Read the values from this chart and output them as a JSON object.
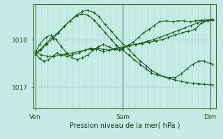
{
  "title": "",
  "xlabel": "Pression niveau de la mer( hPa )",
  "background_color": "#c5ece4",
  "grid_color_h": "#b0d8d0",
  "grid_color_v": "#b8d8d2",
  "line_color": "#1a5c1a",
  "xtick_labels": [
    "Ven",
    "Sam",
    "Dim"
  ],
  "xtick_positions": [
    0.0,
    1.0,
    2.0
  ],
  "ytick_labels": [
    "1017",
    "1018"
  ],
  "ytick_positions": [
    1017.0,
    1018.0
  ],
  "ylim": [
    1016.55,
    1018.75
  ],
  "xlim": [
    -0.02,
    2.07
  ],
  "series": [
    {
      "x": [
        0.0,
        0.05,
        0.1,
        0.15,
        0.2,
        0.25,
        0.3,
        0.36,
        0.42,
        0.5,
        0.57,
        0.63,
        0.7,
        0.78,
        0.85,
        0.92,
        1.0,
        1.08,
        1.15,
        1.22,
        1.3,
        1.38,
        1.45,
        1.52,
        1.6,
        1.68,
        1.75,
        1.83,
        1.9,
        1.97,
        2.03
      ],
      "y": [
        1017.72,
        1017.6,
        1017.55,
        1017.58,
        1017.65,
        1017.72,
        1017.68,
        1017.65,
        1017.68,
        1017.72,
        1017.78,
        1017.82,
        1017.8,
        1017.75,
        1017.78,
        1017.82,
        1017.85,
        1017.88,
        1017.9,
        1017.92,
        1017.95,
        1017.98,
        1018.0,
        1018.05,
        1018.1,
        1018.15,
        1018.18,
        1018.22,
        1018.35,
        1018.4,
        1018.42
      ]
    },
    {
      "x": [
        0.0,
        0.07,
        0.14,
        0.21,
        0.28,
        0.35,
        0.42,
        0.5,
        0.57,
        0.64,
        0.71,
        0.78,
        0.85,
        0.92,
        1.0,
        1.07,
        1.14,
        1.21,
        1.28,
        1.35,
        1.42,
        1.5,
        1.57,
        1.64,
        1.71,
        1.78,
        1.85,
        1.92,
        2.0,
        2.03
      ],
      "y": [
        1017.75,
        1017.68,
        1017.65,
        1017.65,
        1017.68,
        1017.7,
        1017.72,
        1017.75,
        1017.78,
        1017.8,
        1017.82,
        1017.8,
        1017.78,
        1017.8,
        1017.83,
        1017.87,
        1017.9,
        1017.93,
        1017.97,
        1018.0,
        1018.05,
        1018.1,
        1018.15,
        1018.2,
        1018.25,
        1018.3,
        1018.35,
        1018.4,
        1018.42,
        1018.43
      ]
    },
    {
      "x": [
        0.0,
        0.05,
        0.12,
        0.18,
        0.24,
        0.3,
        0.36,
        0.42,
        0.48,
        0.54,
        0.6,
        0.66,
        0.72,
        0.78,
        0.84,
        0.9,
        0.96,
        1.0,
        1.06,
        1.12,
        1.18,
        1.24,
        1.3,
        1.36,
        1.42,
        1.5,
        1.57,
        1.63,
        1.7,
        1.77,
        1.83,
        1.9,
        1.97,
        2.03
      ],
      "y": [
        1017.72,
        1017.9,
        1018.05,
        1018.1,
        1018.0,
        1017.85,
        1017.72,
        1017.62,
        1017.58,
        1017.62,
        1017.68,
        1017.78,
        1017.85,
        1017.9,
        1017.85,
        1017.8,
        1017.78,
        1017.8,
        1017.88,
        1017.95,
        1018.05,
        1018.15,
        1018.22,
        1018.3,
        1018.38,
        1018.4,
        1018.38,
        1018.4,
        1018.4,
        1018.38,
        1018.4,
        1018.41,
        1018.42,
        1018.43
      ]
    },
    {
      "x": [
        0.0,
        0.06,
        0.12,
        0.19,
        0.26,
        0.33,
        0.4,
        0.47,
        0.54,
        0.6,
        0.67,
        0.73,
        0.8,
        0.87,
        0.93,
        1.0,
        1.07,
        1.13,
        1.2,
        1.27,
        1.33,
        1.4,
        1.47,
        1.53,
        1.6,
        1.67,
        1.73,
        1.8,
        1.87,
        1.93,
        2.0,
        2.03
      ],
      "y": [
        1017.72,
        1017.8,
        1017.92,
        1018.05,
        1018.15,
        1018.28,
        1018.4,
        1018.52,
        1018.6,
        1018.62,
        1018.58,
        1018.48,
        1018.32,
        1018.18,
        1018.05,
        1017.92,
        1017.8,
        1017.68,
        1017.55,
        1017.45,
        1017.35,
        1017.28,
        1017.22,
        1017.18,
        1017.15,
        1017.12,
        1017.1,
        1017.08,
        1017.07,
        1017.06,
        1017.05,
        1017.05
      ]
    },
    {
      "x": [
        0.0,
        0.06,
        0.13,
        0.2,
        0.27,
        0.33,
        0.4,
        0.47,
        0.53,
        0.6,
        0.67,
        0.73,
        0.8,
        0.87,
        0.93,
        1.0,
        1.07,
        1.13,
        1.2,
        1.27,
        1.33,
        1.4,
        1.47,
        1.53,
        1.6,
        1.67,
        1.73,
        1.8,
        1.87,
        1.93,
        2.0,
        2.03
      ],
      "y": [
        1017.68,
        1017.78,
        1017.9,
        1018.02,
        1018.15,
        1018.28,
        1018.4,
        1018.5,
        1018.55,
        1018.52,
        1018.42,
        1018.3,
        1018.15,
        1018.0,
        1017.88,
        1017.78,
        1017.68,
        1017.58,
        1017.48,
        1017.38,
        1017.3,
        1017.25,
        1017.22,
        1017.2,
        1017.2,
        1017.28,
        1017.38,
        1017.48,
        1017.55,
        1017.55,
        1017.5,
        1017.48
      ]
    }
  ]
}
